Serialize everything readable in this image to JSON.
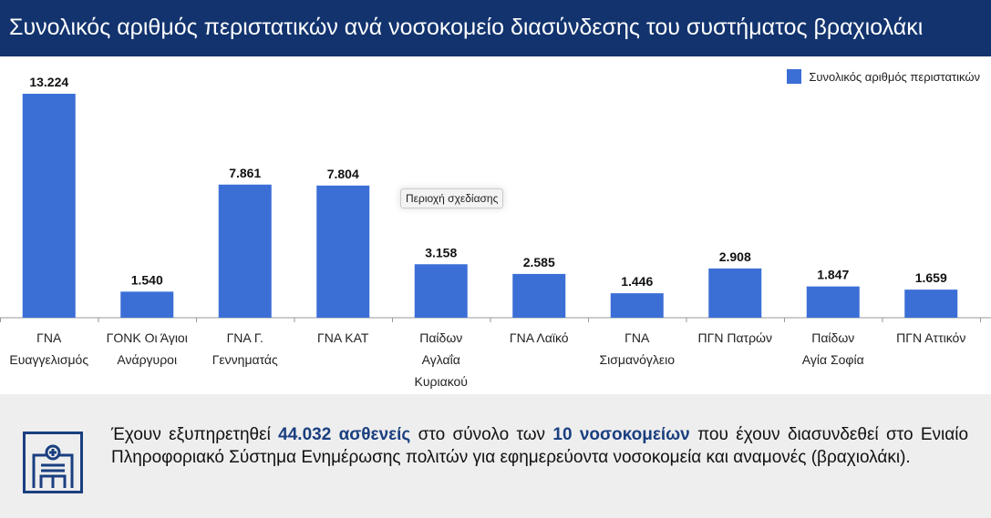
{
  "title": "Συνολικός αριθμός περιστατικών ανά νοσοκομείο διασύνδεσης του συστήματος βραχιολάκι",
  "tooltip": "Περιοχή σχεδίασης",
  "chart_data": {
    "type": "bar",
    "title": "Συνολικός αριθμός περιστατικών ανά νοσοκομείο διασύνδεσης του συστήματος βραχιολάκι",
    "categories": [
      [
        "ΓΝΑ",
        "Ευαγγελισμός"
      ],
      [
        "ΓΟΝΚ Οι Άγιοι",
        "Ανάργυροι"
      ],
      [
        "ΓΝΑ Γ.",
        "Γεννηματάς"
      ],
      [
        "ΓΝΑ ΚΑΤ"
      ],
      [
        "Παίδων",
        "Αγλαΐα",
        "Κυριακού"
      ],
      [
        "ΓΝΑ Λαϊκό"
      ],
      [
        "ΓΝΑ",
        "Σισμανόγλειο"
      ],
      [
        "ΠΓΝ Πατρών"
      ],
      [
        "Παίδων",
        "Αγία Σοφία"
      ],
      [
        "ΠΓΝ Αττικόν"
      ]
    ],
    "values": [
      13224,
      1540,
      7861,
      7804,
      3158,
      2585,
      1446,
      2908,
      1847,
      1659
    ],
    "labels": [
      "13.224",
      "1.540",
      "7.861",
      "7.804",
      "3.158",
      "2.585",
      "1.446",
      "2.908",
      "1.847",
      "1.659"
    ],
    "series_name": "Συνολικός αριθμός περιστατικών",
    "legend": "top-right",
    "ylim": [
      0,
      13224
    ],
    "color": "#3b6fd6"
  },
  "summary": {
    "p1": "Έχουν εξυπηρετηθεί ",
    "b1": "44.032 ασθενείς",
    "p2": " στο σύνολο των ",
    "b2": "10 νοσοκομείων",
    "p3": " που έχουν διασυνδεθεί στο Ενιαίο Πληροφοριακό Σύστημα Ενημέρωσης πολιτών για εφημερεύοντα νοσοκομεία και αναμονές (βραχιολάκι)."
  }
}
